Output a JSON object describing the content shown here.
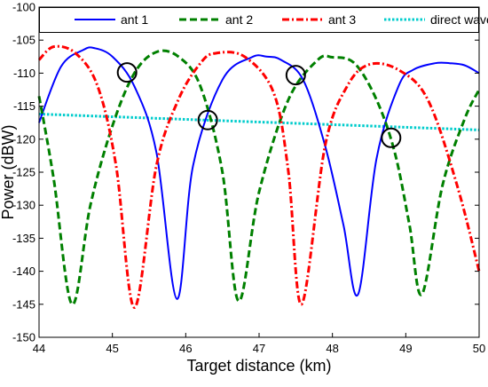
{
  "chart_data": {
    "type": "line",
    "title": "",
    "xlabel": "Target distance (km)",
    "ylabel": "Power (dBW)",
    "xlim": [
      44,
      50
    ],
    "ylim": [
      -150,
      -100
    ],
    "xticks": [
      "44",
      "45",
      "46",
      "47",
      "48",
      "49",
      "50"
    ],
    "yticks": [
      "-100",
      "-105",
      "-110",
      "-115",
      "-120",
      "-125",
      "-130",
      "-135",
      "-140",
      "-145",
      "-150"
    ],
    "legend_position": "top, spanning full width",
    "grid": false,
    "series": [
      {
        "name": "ant 1",
        "color": "#0000ff",
        "style": "solid",
        "x": [
          44.0,
          44.3,
          44.6,
          44.75,
          45.0,
          45.3,
          45.6,
          45.88,
          46.1,
          46.5,
          46.9,
          47.1,
          47.3,
          47.6,
          47.9,
          48.15,
          48.35,
          48.6,
          48.9,
          49.1,
          49.4,
          49.6,
          49.8,
          50.0
        ],
        "y": [
          -117.5,
          -109,
          -106.5,
          -106.2,
          -107.5,
          -112,
          -122,
          -144.2,
          -124,
          -111,
          -107.6,
          -107.5,
          -108,
          -111,
          -121,
          -133,
          -143.5,
          -123,
          -112,
          -109.5,
          -108.5,
          -108.5,
          -108.8,
          -110
        ]
      },
      {
        "name": "ant 2",
        "color": "#008000",
        "style": "dashed",
        "x": [
          44.0,
          44.2,
          44.45,
          44.7,
          45.0,
          45.3,
          45.6,
          45.9,
          46.2,
          46.5,
          46.72,
          47.0,
          47.4,
          47.8,
          48.0,
          48.3,
          48.6,
          48.85,
          49.05,
          49.22,
          49.5,
          49.8,
          50.0
        ],
        "y": [
          -113.5,
          -126,
          -145,
          -130,
          -118,
          -110,
          -106.8,
          -107.5,
          -112,
          -125,
          -144.5,
          -128,
          -114,
          -108,
          -107.6,
          -108.5,
          -114,
          -122,
          -133,
          -143.5,
          -127,
          -117,
          -112.5
        ]
      },
      {
        "name": "ant 3",
        "color": "#ff0000",
        "style": "dashdot",
        "x": [
          44.0,
          44.2,
          44.5,
          44.8,
          45.05,
          45.3,
          45.6,
          45.9,
          46.2,
          46.4,
          46.8,
          47.2,
          47.4,
          47.58,
          47.9,
          48.2,
          48.5,
          48.9,
          49.3,
          49.7,
          50.0
        ],
        "y": [
          -108,
          -106,
          -107,
          -112,
          -124,
          -145.5,
          -124,
          -114,
          -108.5,
          -107,
          -107.5,
          -113,
          -125,
          -145,
          -121,
          -112,
          -108.7,
          -109.5,
          -114,
          -127,
          -140
        ]
      },
      {
        "name": "direct wave",
        "color": "#00cccc",
        "style": "dotted",
        "x": [
          44.0,
          45.0,
          46.0,
          47.0,
          48.0,
          49.0,
          50.0
        ],
        "y": [
          -116.2,
          -116.6,
          -117.0,
          -117.4,
          -117.8,
          -118.2,
          -118.6
        ]
      }
    ],
    "markers": [
      {
        "x": 45.2,
        "y": -109.9
      },
      {
        "x": 46.3,
        "y": -117.1
      },
      {
        "x": 47.5,
        "y": -110.3
      },
      {
        "x": 48.8,
        "y": -119.8
      }
    ]
  }
}
